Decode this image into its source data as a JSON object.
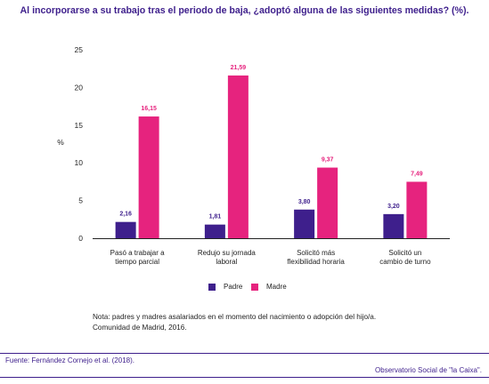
{
  "title": "Al incorporarse a su trabajo tras el periodo de baja, ¿adoptó alguna de las siguientes medidas? (%).",
  "note_lines": [
    "Nota: padres y madres asalariados en el momento del nacimiento o adopción del hijo/a.",
    "Comunidad de Madrid, 2016."
  ],
  "source": "Fuente: Fernández Cornejo et al. (2018).",
  "publisher": "Observatorio Social de \"la Caixa\".",
  "colors": {
    "title": "#3e1f8c",
    "padre": "#3e1f8c",
    "madre": "#e6237e",
    "axis": "#222222"
  },
  "chart_data": {
    "type": "bar",
    "ylabel": "%",
    "ylim": [
      0,
      25
    ],
    "yticks": [
      0,
      5,
      10,
      15,
      20,
      25
    ],
    "grid": false,
    "legend_position": "bottom",
    "categories": [
      [
        "Pasó a trabajar a",
        "tiempo parcial"
      ],
      [
        "Redujo su jornada",
        "laboral"
      ],
      [
        "Solicitó más",
        "flexibilidad horaria"
      ],
      [
        "Solicitó un",
        "cambio de turno"
      ]
    ],
    "series": [
      {
        "name": "Padre",
        "values": [
          2.16,
          1.81,
          3.8,
          3.2
        ],
        "labels": [
          "2,16",
          "1,81",
          "3,80",
          "3,20"
        ]
      },
      {
        "name": "Madre",
        "values": [
          16.15,
          21.59,
          9.37,
          7.49
        ],
        "labels": [
          "16,15",
          "21,59",
          "9,37",
          "7,49"
        ]
      }
    ]
  }
}
